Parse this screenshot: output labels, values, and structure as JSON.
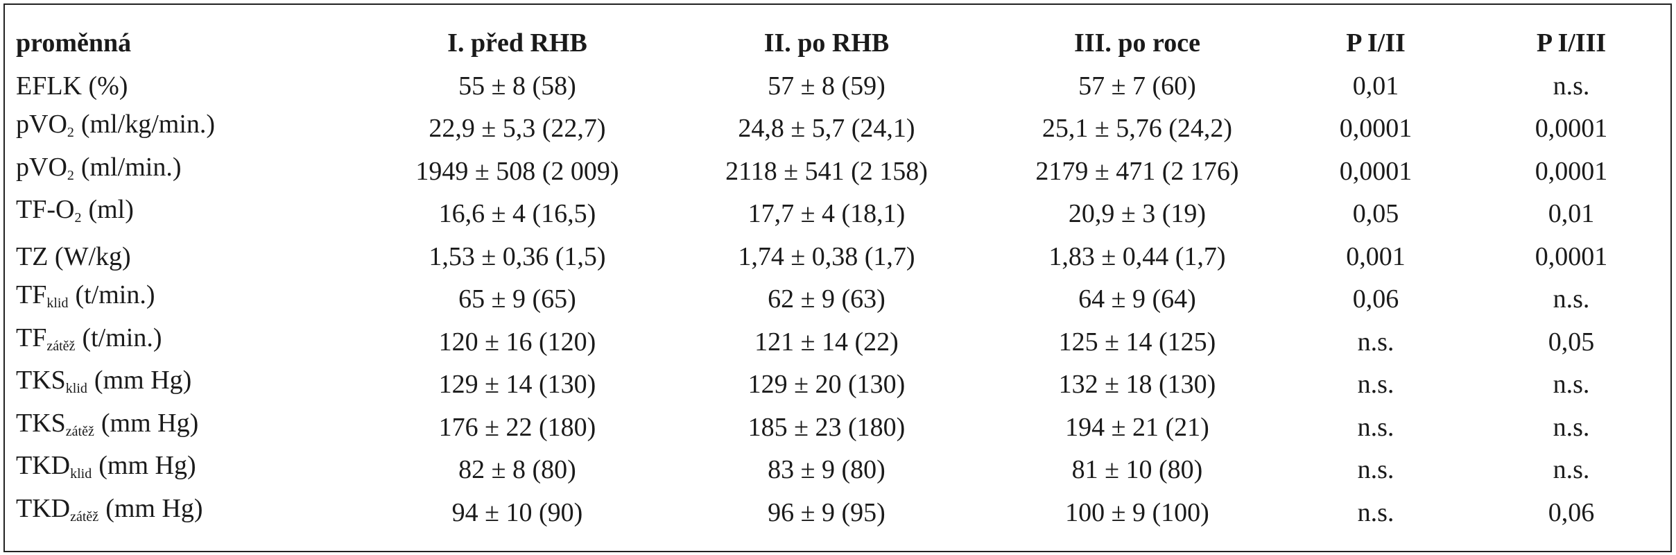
{
  "table": {
    "header": [
      "proměnná",
      "I. před RHB",
      "II. po RHB",
      "III. po roce",
      "P I/II",
      "P I/III"
    ],
    "rows": [
      {
        "variable": {
          "text": "EFLK (%)"
        },
        "cells": [
          "55 ± 8 (58)",
          "57 ± 8 (59)",
          "57 ± 7 (60)",
          "0,01",
          "n.s."
        ]
      },
      {
        "variable": {
          "text": "pVO",
          "sub": "2",
          "after": "(ml/kg/min.)"
        },
        "cells": [
          "22,9 ± 5,3 (22,7)",
          "24,8 ± 5,7 (24,1)",
          "25,1 ± 5,76 (24,2)",
          "0,0001",
          "0,0001"
        ]
      },
      {
        "variable": {
          "text": "pVO",
          "sub": "2",
          "after": "(ml/min.)"
        },
        "cells": [
          "1949 ± 508 (2 009)",
          "2118 ± 541 (2 158)",
          "2179 ± 471 (2 176)",
          "0,0001",
          "0,0001"
        ]
      },
      {
        "variable": {
          "text": "TF-O",
          "sub": "2",
          "after": "(ml)"
        },
        "cells": [
          "16,6 ± 4 (16,5)",
          "17,7 ± 4 (18,1)",
          "20,9 ± 3 (19)",
          "0,05",
          "0,01"
        ]
      },
      {
        "variable": {
          "text": "TZ (W/kg)"
        },
        "cells": [
          "1,53 ± 0,36 (1,5)",
          "1,74 ± 0,38 (1,7)",
          "1,83 ± 0,44 (1,7)",
          "0,001",
          "0,0001"
        ]
      },
      {
        "variable": {
          "text": "TF",
          "sub": "klid",
          "after": "(t/min.)"
        },
        "cells": [
          "65 ± 9 (65)",
          "62 ± 9 (63)",
          "64 ± 9 (64)",
          "0,06",
          "n.s."
        ]
      },
      {
        "variable": {
          "text": "TF",
          "sub": "zátěž",
          "after": "(t/min.)"
        },
        "cells": [
          "120 ± 16 (120)",
          "121 ± 14 (22)",
          "125 ± 14 (125)",
          "n.s.",
          "0,05"
        ]
      },
      {
        "variable": {
          "text": "TKS",
          "sub": "klid",
          "after": "(mm Hg)"
        },
        "cells": [
          "129 ± 14 (130)",
          "129 ± 20 (130)",
          "132 ± 18 (130)",
          "n.s.",
          "n.s."
        ]
      },
      {
        "variable": {
          "text": "TKS",
          "sub": "zátěž",
          "after": "(mm Hg)"
        },
        "cells": [
          "176 ± 22 (180)",
          "185 ± 23 (180)",
          "194 ± 21 (21)",
          "n.s.",
          "n.s."
        ]
      },
      {
        "variable": {
          "text": "TKD",
          "sub": "klid",
          "after": "(mm Hg)"
        },
        "cells": [
          "82 ± 8 (80)",
          "83 ± 9 (80)",
          "81 ± 10 (80)",
          "n.s.",
          "n.s."
        ]
      },
      {
        "variable": {
          "text": "TKD",
          "sub": "zátěž",
          "after": "(mm Hg)"
        },
        "cells": [
          "94 ± 10 (90)",
          "96 ± 9 (95)",
          "100 ± 9 (100)",
          "n.s.",
          "0,06"
        ]
      }
    ]
  }
}
